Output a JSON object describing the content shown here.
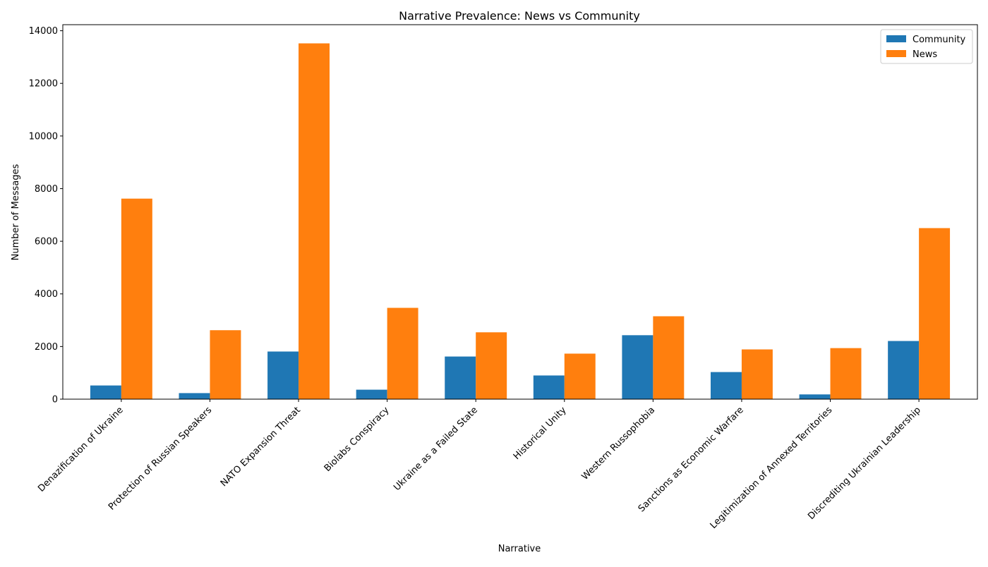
{
  "chart_data": {
    "type": "bar",
    "title": "Narrative Prevalence: News vs Community",
    "xlabel": "Narrative",
    "ylabel": "Number of Messages",
    "categories": [
      "Denazification of Ukraine",
      "Protection of Russian Speakers",
      "NATO Expansion Threat",
      "Biolabs Conspiracy",
      "Ukraine as a Failed State",
      "Historical Unity",
      "Western Russophobia",
      "Sanctions as Economic Warfare",
      "Legitimization of Annexed Territories",
      "Discrediting Ukrainian Leadership"
    ],
    "series": [
      {
        "name": "Community",
        "color": "#1f77b4",
        "values": [
          520,
          230,
          1810,
          360,
          1620,
          900,
          2430,
          1030,
          180,
          2210
        ]
      },
      {
        "name": "News",
        "color": "#ff7f0e",
        "values": [
          7620,
          2620,
          13520,
          3470,
          2540,
          1730,
          3150,
          1890,
          1940,
          6500
        ]
      }
    ],
    "ylim": [
      0,
      14230
    ],
    "yticks": [
      0,
      2000,
      4000,
      6000,
      8000,
      10000,
      12000,
      14000
    ],
    "grid": false,
    "legend_position": "top-right"
  }
}
